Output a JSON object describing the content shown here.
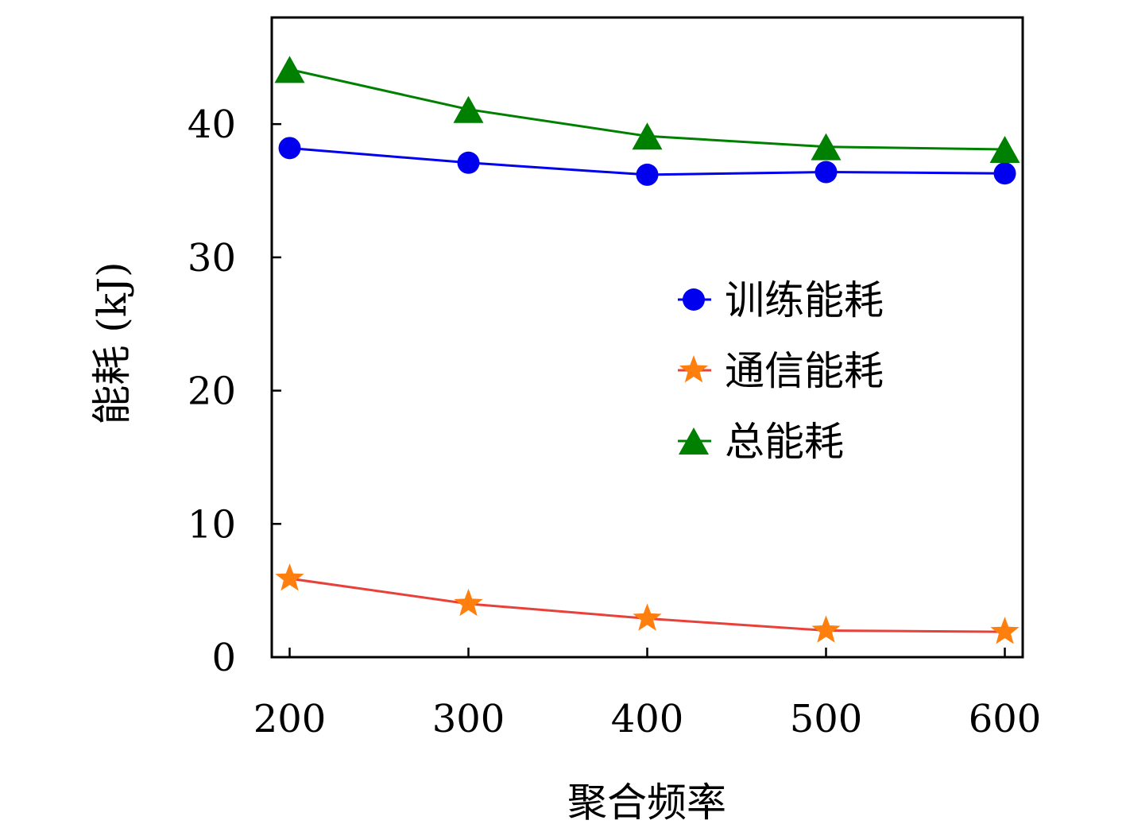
{
  "chart_data": {
    "type": "line",
    "xlabel": "聚合频率",
    "ylabel": "能耗 (kJ)",
    "x": [
      200,
      300,
      400,
      500,
      600
    ],
    "xlim": [
      190,
      610
    ],
    "ylim": [
      0,
      48
    ],
    "xticks": [
      "200",
      "300",
      "400",
      "500",
      "600"
    ],
    "yticks": [
      "0",
      "10",
      "20",
      "30",
      "40"
    ],
    "grid": false,
    "legend_position": "center-right",
    "series": [
      {
        "name": "训练能耗",
        "values": [
          38.2,
          37.1,
          36.2,
          36.4,
          36.3
        ],
        "color": "#0000ee",
        "marker": "circle",
        "line_color": "#0000ee"
      },
      {
        "name": "通信能耗",
        "values": [
          5.9,
          4.0,
          2.9,
          2.0,
          1.9
        ],
        "color": "#ff7f0e",
        "marker": "star",
        "line_color": "#e8413a"
      },
      {
        "name": "总能耗",
        "values": [
          44.1,
          41.1,
          39.1,
          38.3,
          38.1
        ],
        "color": "#008000",
        "marker": "triangle",
        "line_color": "#008000"
      }
    ]
  }
}
